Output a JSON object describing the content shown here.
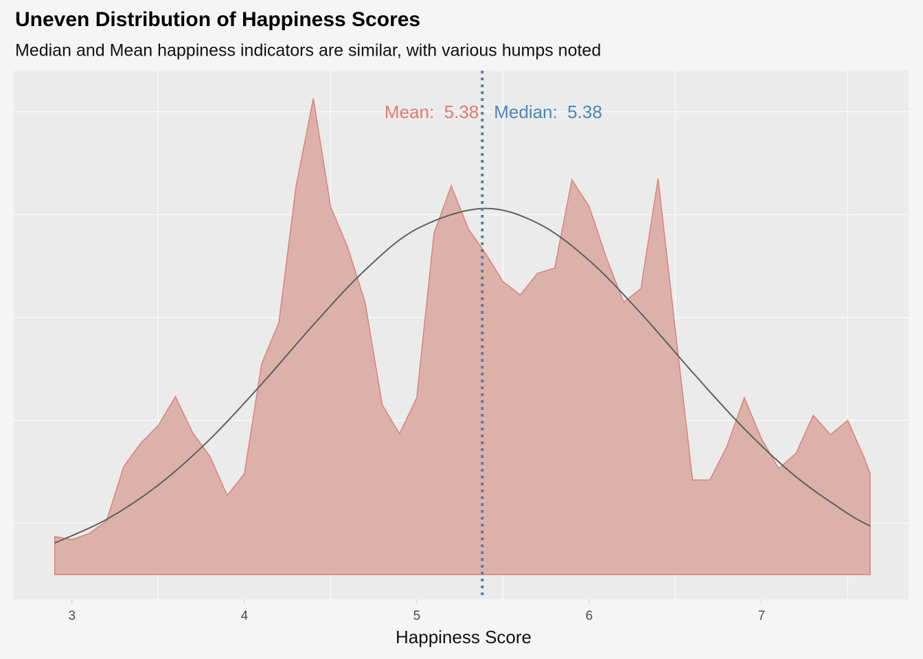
{
  "chart_data": {
    "type": "density",
    "title": "Uneven Distribution of Happiness Scores",
    "subtitle": "Median and Mean happiness indicators are similar, with various humps noted",
    "x_label": "Happiness Score",
    "x": [
      2.9,
      3.0,
      3.1,
      3.2,
      3.3,
      3.4,
      3.5,
      3.6,
      3.7,
      3.8,
      3.9,
      4.0,
      4.1,
      4.2,
      4.3,
      4.4,
      4.5,
      4.6,
      4.7,
      4.8,
      4.9,
      5.0,
      5.1,
      5.2,
      5.3,
      5.4,
      5.5,
      5.6,
      5.7,
      5.8,
      5.9,
      6.0,
      6.1,
      6.2,
      6.3,
      6.4,
      6.5,
      6.6,
      6.7,
      6.8,
      6.9,
      7.0,
      7.1,
      7.2,
      7.3,
      7.4,
      7.5,
      7.6,
      7.63
    ],
    "values": [
      0.037,
      0.034,
      0.04,
      0.052,
      0.105,
      0.128,
      0.145,
      0.173,
      0.138,
      0.115,
      0.077,
      0.098,
      0.205,
      0.245,
      0.378,
      0.463,
      0.358,
      0.318,
      0.265,
      0.165,
      0.137,
      0.172,
      0.332,
      0.378,
      0.336,
      0.312,
      0.285,
      0.272,
      0.293,
      0.298,
      0.384,
      0.358,
      0.308,
      0.265,
      0.278,
      0.385,
      0.238,
      0.092,
      0.092,
      0.125,
      0.172,
      0.132,
      0.103,
      0.118,
      0.155,
      0.136,
      0.15,
      0.112,
      0.098
    ],
    "color": "#dcb1aa",
    "edge_color": "#d4857a",
    "normal": {
      "x": [
        2.9,
        3.2,
        3.5,
        3.8,
        4.1,
        4.4,
        4.7,
        5.0,
        5.38,
        5.7,
        6.0,
        6.3,
        6.6,
        6.9,
        7.2,
        7.5,
        7.63
      ],
      "values": [
        0.0307,
        0.0536,
        0.087,
        0.1316,
        0.1853,
        0.2428,
        0.2961,
        0.3361,
        0.356,
        0.3418,
        0.3055,
        0.2541,
        0.1967,
        0.1418,
        0.0951,
        0.0594,
        0.0473
      ],
      "color": "#5f5f5f"
    },
    "vline": 5.38,
    "vline_color": "#5b7aa6",
    "annotations": [
      {
        "text": "Mean:  5.38",
        "color": "#e07a6e"
      },
      {
        "text": "Median:  5.38",
        "color": "#4a86b8"
      }
    ],
    "xlim": [
      2.662,
      7.853
    ],
    "ylim": [
      -0.024,
      0.49
    ],
    "xticks": [
      3,
      4,
      5,
      6,
      7
    ],
    "xgrid": [
      3.5,
      4.5,
      5.5,
      6.5,
      7.5
    ],
    "ygrid": [
      0.05,
      0.15,
      0.25,
      0.35,
      0.45
    ]
  }
}
